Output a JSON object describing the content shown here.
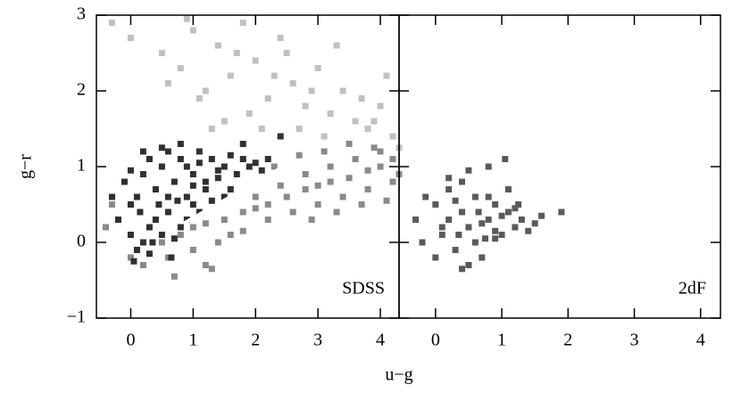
{
  "chart_data": [
    {
      "type": "scatter",
      "panel_label": "SDSS",
      "xlabel": "u−g",
      "ylabel": "g−r",
      "xlim": [
        -0.55,
        4.3
      ],
      "ylim": [
        -1,
        3
      ],
      "xticks": [
        0,
        1,
        2,
        3,
        4
      ],
      "yticks": [
        {
          "value": -1,
          "label": "−1"
        },
        0,
        1,
        2,
        3
      ],
      "series": [
        {
          "color": "#c0c0c0",
          "mode": "markers",
          "x": [
            0.5,
            0.8,
            1.0,
            1.2,
            1.4,
            1.6,
            1.8,
            2.0,
            2.2,
            2.4,
            2.6,
            2.8,
            3.0,
            3.2,
            3.4,
            3.6,
            3.8,
            4.0,
            4.2,
            0.6,
            1.1,
            1.5,
            1.9,
            2.3,
            2.7,
            3.1,
            3.5,
            3.9,
            4.3,
            -0.3,
            0.0,
            0.9,
            1.7,
            2.5,
            3.3,
            4.1,
            2.1,
            2.9,
            3.7,
            1.3
          ],
          "y": [
            2.5,
            2.3,
            2.8,
            2.0,
            2.6,
            2.2,
            2.9,
            2.4,
            1.9,
            2.7,
            2.1,
            1.8,
            2.3,
            1.7,
            2.0,
            1.6,
            1.5,
            1.8,
            1.4,
            2.1,
            1.9,
            1.6,
            1.7,
            2.2,
            1.5,
            1.4,
            1.3,
            1.6,
            1.25,
            2.9,
            2.7,
            2.95,
            2.5,
            2.5,
            2.6,
            2.2,
            1.5,
            2.0,
            1.9,
            1.5
          ]
        },
        {
          "color": "#8a8a8a",
          "mode": "markers",
          "x": [
            0.5,
            0.8,
            1.0,
            1.2,
            1.5,
            1.8,
            2.0,
            2.2,
            2.5,
            2.8,
            3.0,
            3.2,
            3.5,
            3.8,
            4.0,
            4.2,
            1.0,
            1.4,
            1.8,
            2.2,
            2.6,
            3.0,
            3.4,
            3.8,
            4.2,
            0.6,
            1.2,
            1.6,
            2.0,
            2.4,
            2.8,
            3.2,
            3.6,
            4.0,
            2.3,
            2.7,
            3.1,
            3.5,
            3.9,
            4.3,
            -0.3,
            -0.4,
            0.0,
            0.2,
            0.7,
            1.3,
            2.9,
            3.3,
            3.7,
            4.1
          ],
          "y": [
            0.0,
            0.1,
            0.2,
            0.25,
            0.3,
            0.4,
            0.45,
            0.5,
            0.6,
            0.7,
            0.75,
            0.8,
            0.85,
            0.95,
            1.0,
            1.1,
            -0.1,
            0.0,
            0.15,
            0.3,
            0.4,
            0.5,
            0.6,
            0.7,
            0.8,
            -0.2,
            -0.3,
            0.1,
            0.6,
            0.75,
            0.9,
            1.0,
            1.1,
            1.2,
            1.0,
            1.15,
            1.2,
            1.3,
            1.25,
            0.9,
            0.5,
            0.2,
            -0.2,
            -0.3,
            -0.45,
            -0.35,
            0.3,
            0.4,
            0.5,
            0.55
          ]
        },
        {
          "color": "#303030",
          "mode": "markers",
          "x": [
            -0.2,
            0,
            0.1,
            0.2,
            0.3,
            0.4,
            0.5,
            0.6,
            0.7,
            0.8,
            0.9,
            1.0,
            1.1,
            1.2,
            1.3,
            1.4,
            1.5,
            1.6,
            1.7,
            1.8,
            1.9,
            2.0,
            2.1,
            0,
            0.2,
            0.4,
            0.6,
            0.8,
            1.0,
            1.2,
            1.4,
            1.6,
            -0.1,
            0.1,
            0.3,
            0.5,
            0.7,
            0.9,
            1.1,
            1.3,
            0.2,
            0.5,
            0.8,
            1.1,
            0.0,
            0.3,
            0.6,
            0.9,
            0.15,
            0.45,
            0.75,
            1.5,
            1.8,
            2.2,
            2.4,
            0.35,
            0.65,
            -0.3,
            0.05,
            1.0
          ],
          "y": [
            0.3,
            0.1,
            0.6,
            0.9,
            0.2,
            0.7,
            1.0,
            0.4,
            0.8,
            1.1,
            0.6,
            0.9,
            1.05,
            0.8,
            1.1,
            0.95,
            1.0,
            1.15,
            0.9,
            1.1,
            1.0,
            1.05,
            0.95,
            0.5,
            0.0,
            0.3,
            0.6,
            0.2,
            0.5,
            0.7,
            0.85,
            0.7,
            0.8,
            -0.1,
            -0.15,
            0.1,
            0.05,
            0.3,
            0.4,
            0.55,
            1.2,
            1.25,
            1.3,
            1.2,
            0.95,
            1.1,
            1.2,
            1.0,
            0.4,
            0.5,
            0.55,
            0.6,
            1.3,
            1.1,
            1.4,
            0.0,
            -0.2,
            0.6,
            -0.25,
            0.75
          ]
        },
        {
          "color": "#ffffff",
          "mode": "line",
          "x": [
            0.85,
            2.45
          ],
          "y": [
            0.25,
            1.0
          ]
        }
      ]
    },
    {
      "type": "scatter",
      "panel_label": "2dF",
      "xlim": [
        -0.55,
        4.3
      ],
      "ylim": [
        -1,
        3
      ],
      "xticks": [
        0,
        1,
        2,
        3,
        4
      ],
      "yticks": [
        -1,
        0,
        1,
        2,
        3
      ],
      "series": [
        {
          "color": "#5a5a5a",
          "mode": "markers",
          "x": [
            -0.3,
            -0.2,
            0,
            0.1,
            0.2,
            0.3,
            0.4,
            0.5,
            0.6,
            0.7,
            0.8,
            0.9,
            1.0,
            1.1,
            1.2,
            1.3,
            1.4,
            1.5,
            0,
            0.2,
            0.4,
            0.6,
            0.8,
            1.0,
            1.2,
            0.1,
            0.3,
            0.5,
            0.7,
            0.9,
            1.1,
            0.2,
            0.5,
            0.8,
            1.05,
            0.4,
            0.65,
            0.9,
            1.6,
            1.9,
            -0.15,
            0.35,
            0.75,
            1.25
          ],
          "y": [
            0.3,
            0.0,
            0.5,
            0.1,
            0.7,
            -0.1,
            0.4,
            0.2,
            0.6,
            -0.2,
            0.3,
            0.5,
            0.1,
            0.4,
            0.2,
            0.3,
            0.15,
            0.25,
            -0.2,
            0.3,
            0.8,
            0.0,
            0.6,
            0.35,
            0.45,
            0.2,
            0.55,
            -0.3,
            0.25,
            0.05,
            0.7,
            0.85,
            0.95,
            1.0,
            1.1,
            -0.35,
            0.4,
            0.15,
            0.35,
            0.4,
            0.6,
            0.1,
            0.05,
            0.5
          ]
        }
      ]
    }
  ]
}
